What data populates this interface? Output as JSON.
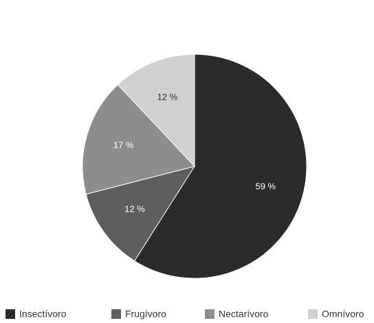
{
  "chart_data": {
    "type": "pie",
    "categories": [
      "Insectívoro",
      "Frugívoro",
      "Nectarívoro",
      "Omnívoro"
    ],
    "values": [
      59,
      12,
      17,
      12
    ],
    "value_labels": [
      "59 %",
      "12 %",
      "17 %",
      "12 %"
    ],
    "colors": [
      "#2b2b2b",
      "#5e5e5e",
      "#8d8d8d",
      "#d0d0d0"
    ],
    "legend": "bottom"
  }
}
